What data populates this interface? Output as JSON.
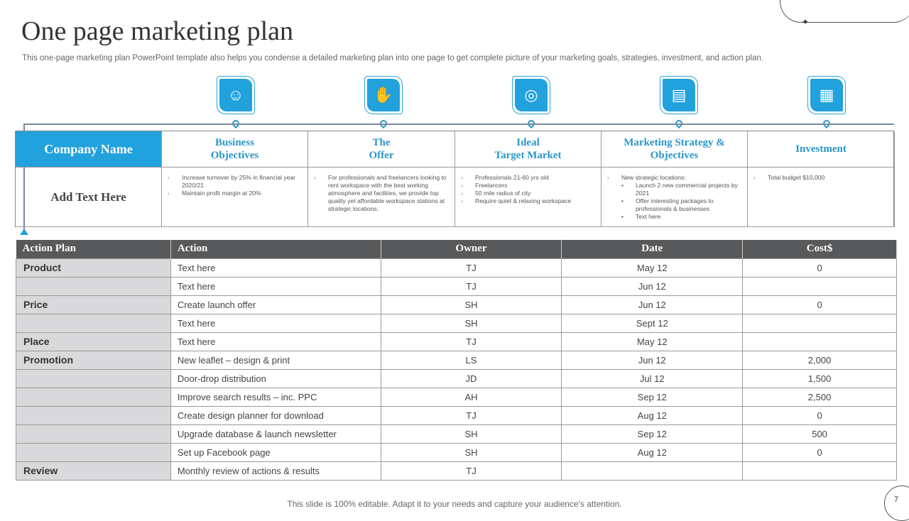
{
  "title": "One page marketing plan",
  "subtitle": "This one-page marketing plan PowerPoint template also helps you condense a detailed marketing plan into one page to get complete picture of your marketing goals, strategies, investment, and action plan.",
  "company": {
    "name": "Company Name",
    "add_text": "Add Text Here"
  },
  "columns": [
    {
      "title": "Business\nObjectives",
      "icon": "team-award-icon",
      "items": [
        {
          "t": "Increase turnover by 25% in financial year 2020/21"
        },
        {
          "t": "Maintain  profit margin at 20%"
        }
      ]
    },
    {
      "title": "The\nOffer",
      "icon": "hand-person-icon",
      "items": [
        {
          "t": "For professionals and freelancers looking to rent workspace with  the best working  atmosphere and facilities, we provide top quality yet affordable workspace stations at strategic locations."
        }
      ]
    },
    {
      "title": "Ideal\nTarget Market",
      "icon": "target-audience-icon",
      "items": [
        {
          "t": "Professionals 21-60 yrs old"
        },
        {
          "t": "Freelancers"
        },
        {
          "t": "50 mile radius of city"
        },
        {
          "t": "Require quiet & relaxing workspace"
        }
      ]
    },
    {
      "title": "Marketing Strategy &\nObjectives",
      "icon": "clipboard-icon",
      "items": [
        {
          "t": "New strategic locations:",
          "sub": [
            "Launch 2 new  commercial projects by 2021",
            "Offer interesting packages to professionals & businesses",
            "Text here"
          ]
        }
      ]
    },
    {
      "title": "Investment",
      "icon": "monitor-chart-icon",
      "items": [
        {
          "t": "Total budget $10,000"
        }
      ]
    }
  ],
  "table": {
    "headers": [
      "Action Plan",
      "Action",
      "Owner",
      "Date",
      "Cost$"
    ],
    "rows": [
      [
        "Product",
        "Text here",
        "TJ",
        "May 12",
        "0"
      ],
      [
        "",
        "Text here",
        "TJ",
        "Jun 12",
        ""
      ],
      [
        "Price",
        "Create launch offer",
        "SH",
        "Jun 12",
        "0"
      ],
      [
        "",
        "Text here",
        "SH",
        "Sept 12",
        ""
      ],
      [
        "Place",
        "Text here",
        "TJ",
        "May 12",
        ""
      ],
      [
        "Promotion",
        "New leaflet – design & print",
        "LS",
        "Jun 12",
        "2,000"
      ],
      [
        "",
        "Door-drop  distribution",
        "JD",
        "Jul 12",
        "1,500"
      ],
      [
        "",
        "Improve  search results  – inc. PPC",
        "AH",
        "Sep 12",
        "2,500"
      ],
      [
        "",
        "Create design planner for download",
        "TJ",
        "Aug 12",
        "0"
      ],
      [
        "",
        "Upgrade database & launch newsletter",
        "SH",
        "Sep 12",
        "500"
      ],
      [
        "",
        "Set up Facebook page",
        "SH",
        "Aug 12",
        "0"
      ],
      [
        "Review",
        "Monthly review  of actions & results",
        "TJ",
        "",
        ""
      ]
    ]
  },
  "footer": "This slide is 100% editable. Adapt it to your needs and capture your audience's attention.",
  "page_number": "7",
  "colors": {
    "accent": "#22a2dc",
    "header_dark": "#58595b",
    "category_bg": "#d9d9db"
  }
}
